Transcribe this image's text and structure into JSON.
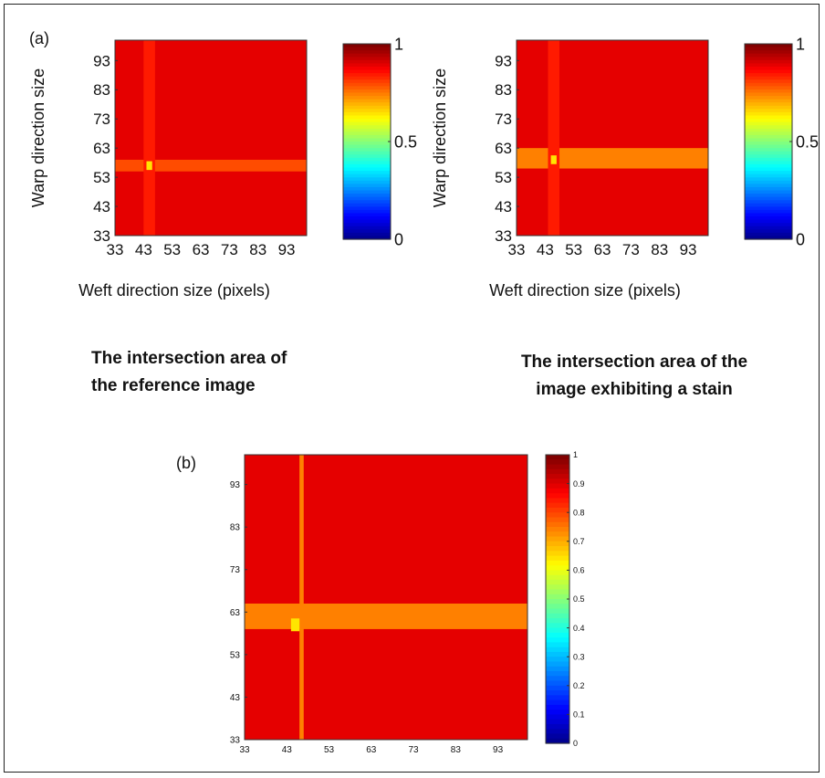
{
  "panel_a_label": "(a)",
  "panel_b_label": "(b)",
  "captions": {
    "left_line1": "The intersection area of",
    "left_line2": "the reference image",
    "right_line1": "The intersection area of the",
    "right_line2": "image exhibiting a stain"
  },
  "colors": {
    "background_map": "#a01a14",
    "band": "#f08a30",
    "band_light": "#f3a13a",
    "hot": "#f4d23a"
  },
  "chart_data": [
    {
      "type": "heatmap",
      "panel": "(a) left",
      "xlabel": "Weft direction size (pixels)",
      "ylabel": "Warp direction size",
      "x_ticks": [
        "33",
        "43",
        "53",
        "63",
        "73",
        "83",
        "93"
      ],
      "y_ticks": [
        "93",
        "83",
        "73",
        "63",
        "53",
        "43",
        "33"
      ],
      "xlim": [
        33,
        100
      ],
      "ylim": [
        33,
        100
      ],
      "colorbar_ticks": [
        "1",
        "0.5",
        "0"
      ],
      "colorbar_range": [
        0,
        1
      ],
      "base_value": 0.9,
      "vertical_band": {
        "x_range": [
          43,
          47
        ],
        "value": 0.85
      },
      "horizontal_band": {
        "y_range": [
          55,
          59
        ],
        "value": 0.8
      },
      "peak": {
        "x": 45,
        "y": 57,
        "value": 0.65
      }
    },
    {
      "type": "heatmap",
      "panel": "(a) right",
      "xlabel": "Weft direction size (pixels)",
      "ylabel": "Warp direction size",
      "x_ticks": [
        "33",
        "43",
        "53",
        "63",
        "73",
        "83",
        "93"
      ],
      "y_ticks": [
        "93",
        "83",
        "73",
        "63",
        "53",
        "43",
        "33"
      ],
      "xlim": [
        33,
        100
      ],
      "ylim": [
        33,
        100
      ],
      "colorbar_ticks": [
        "1",
        "0.5",
        "0"
      ],
      "colorbar_range": [
        0,
        1
      ],
      "base_value": 0.9,
      "vertical_band": {
        "x_range": [
          44,
          48
        ],
        "value": 0.85
      },
      "horizontal_band": {
        "y_range": [
          56,
          63
        ],
        "value": 0.75
      },
      "peak": {
        "x": 46,
        "y": 59,
        "value": 0.65
      }
    },
    {
      "type": "heatmap",
      "panel": "(b)",
      "x_ticks": [
        "33",
        "43",
        "53",
        "63",
        "73",
        "83",
        "93"
      ],
      "y_ticks": [
        "93",
        "83",
        "73",
        "63",
        "53",
        "43",
        "33"
      ],
      "xlim": [
        33,
        100
      ],
      "ylim": [
        33,
        100
      ],
      "colorbar_ticks": [
        "1",
        "0.9",
        "0.8",
        "0.7",
        "0.6",
        "0.5",
        "0.4",
        "0.3",
        "0.2",
        "0.1",
        "0"
      ],
      "colorbar_range": [
        0,
        1
      ],
      "base_value": 0.9,
      "vertical_band": {
        "x_range": [
          46,
          47
        ],
        "value": 0.75
      },
      "horizontal_band": {
        "y_range": [
          59,
          65
        ],
        "value": 0.75
      },
      "peak": {
        "x": 45,
        "y": 60,
        "value": 0.65
      }
    }
  ]
}
